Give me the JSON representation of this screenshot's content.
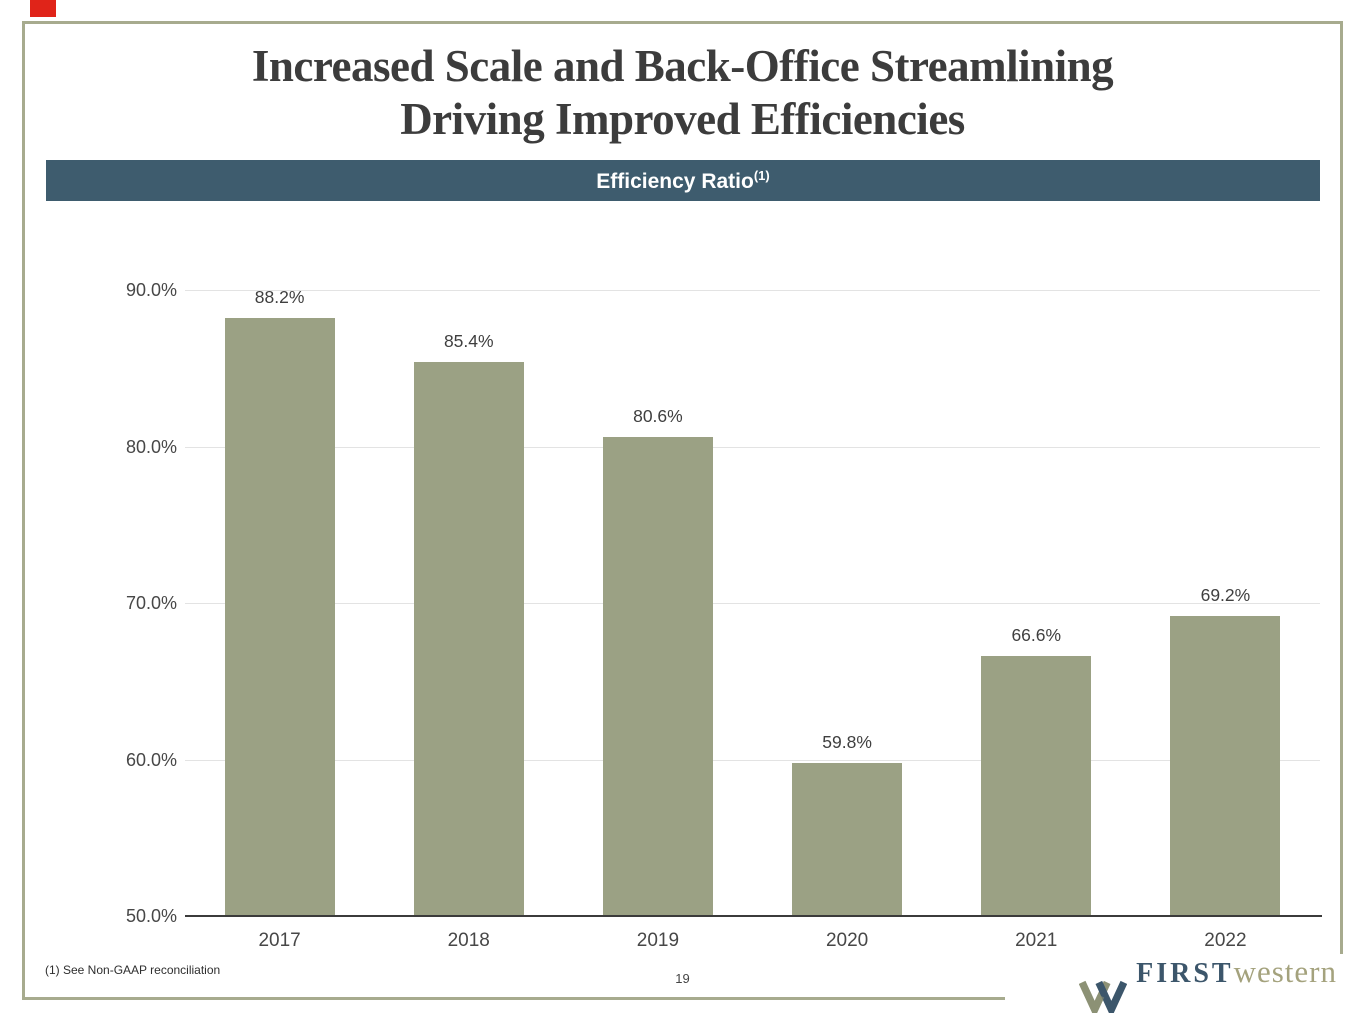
{
  "slide": {
    "title_line1": "Increased Scale and Back-Office Streamlining",
    "title_line2": "Driving Improved Efficiencies",
    "footnote": "(1) See Non-GAAP reconciliation",
    "page_number": "19"
  },
  "banner": {
    "label": "Efficiency Ratio",
    "superscript": "(1)"
  },
  "chart_data": {
    "type": "bar",
    "title": "Efficiency Ratio (1)",
    "categories": [
      "2017",
      "2018",
      "2019",
      "2020",
      "2021",
      "2022"
    ],
    "values": [
      88.2,
      85.4,
      80.6,
      59.8,
      66.6,
      69.2
    ],
    "value_labels": [
      "88.2%",
      "85.4%",
      "80.6%",
      "59.8%",
      "66.6%",
      "69.2%"
    ],
    "xlabel": "",
    "ylabel": "",
    "ylim": [
      50,
      90
    ],
    "yticks": [
      90,
      80,
      70,
      60,
      50
    ],
    "ytick_labels": [
      "90.0%",
      "80.0%",
      "70.0%",
      "60.0%",
      "50.0%"
    ],
    "grid": "horizontal gridlines at 60/70/80/90, legend none",
    "bar_color": "#9ba184"
  },
  "logo": {
    "word1": "FIRST",
    "word2": "western"
  },
  "colors": {
    "banner_bg": "#3e5c6e",
    "bar_fill": "#9ba184",
    "slide_border": "#a7ab8e",
    "title_text": "#3c3c3c",
    "grid_line": "#e3e3e3",
    "axis_line": "#3b3b3b",
    "label_text": "#474747",
    "red_marker": "#e02419",
    "logo_first": "#3c566b",
    "logo_western": "#a4a27d",
    "logo_mark_olive": "#8d9175"
  }
}
